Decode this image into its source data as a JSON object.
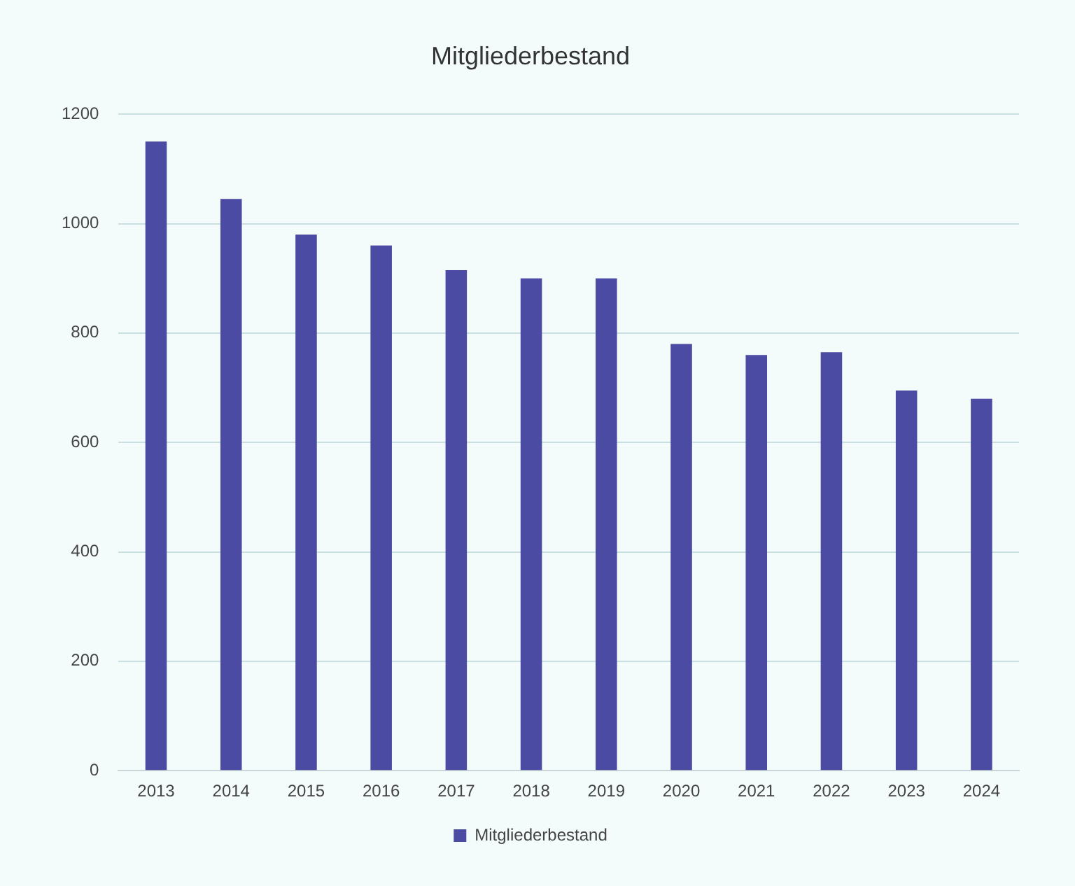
{
  "chart_data": {
    "type": "bar",
    "title": "Mitgliederbestand",
    "categories": [
      "2013",
      "2014",
      "2015",
      "2016",
      "2017",
      "2018",
      "2019",
      "2020",
      "2021",
      "2022",
      "2023",
      "2024"
    ],
    "series": [
      {
        "name": "Mitgliederbestand",
        "color": "#4b4ba3",
        "values": [
          1150,
          1045,
          980,
          960,
          915,
          900,
          900,
          780,
          760,
          765,
          695,
          680
        ]
      }
    ],
    "ylim": [
      0,
      1200
    ],
    "yticks": [
      0,
      200,
      400,
      600,
      800,
      1000,
      1200
    ],
    "grid": "y",
    "legend": "bottom"
  }
}
